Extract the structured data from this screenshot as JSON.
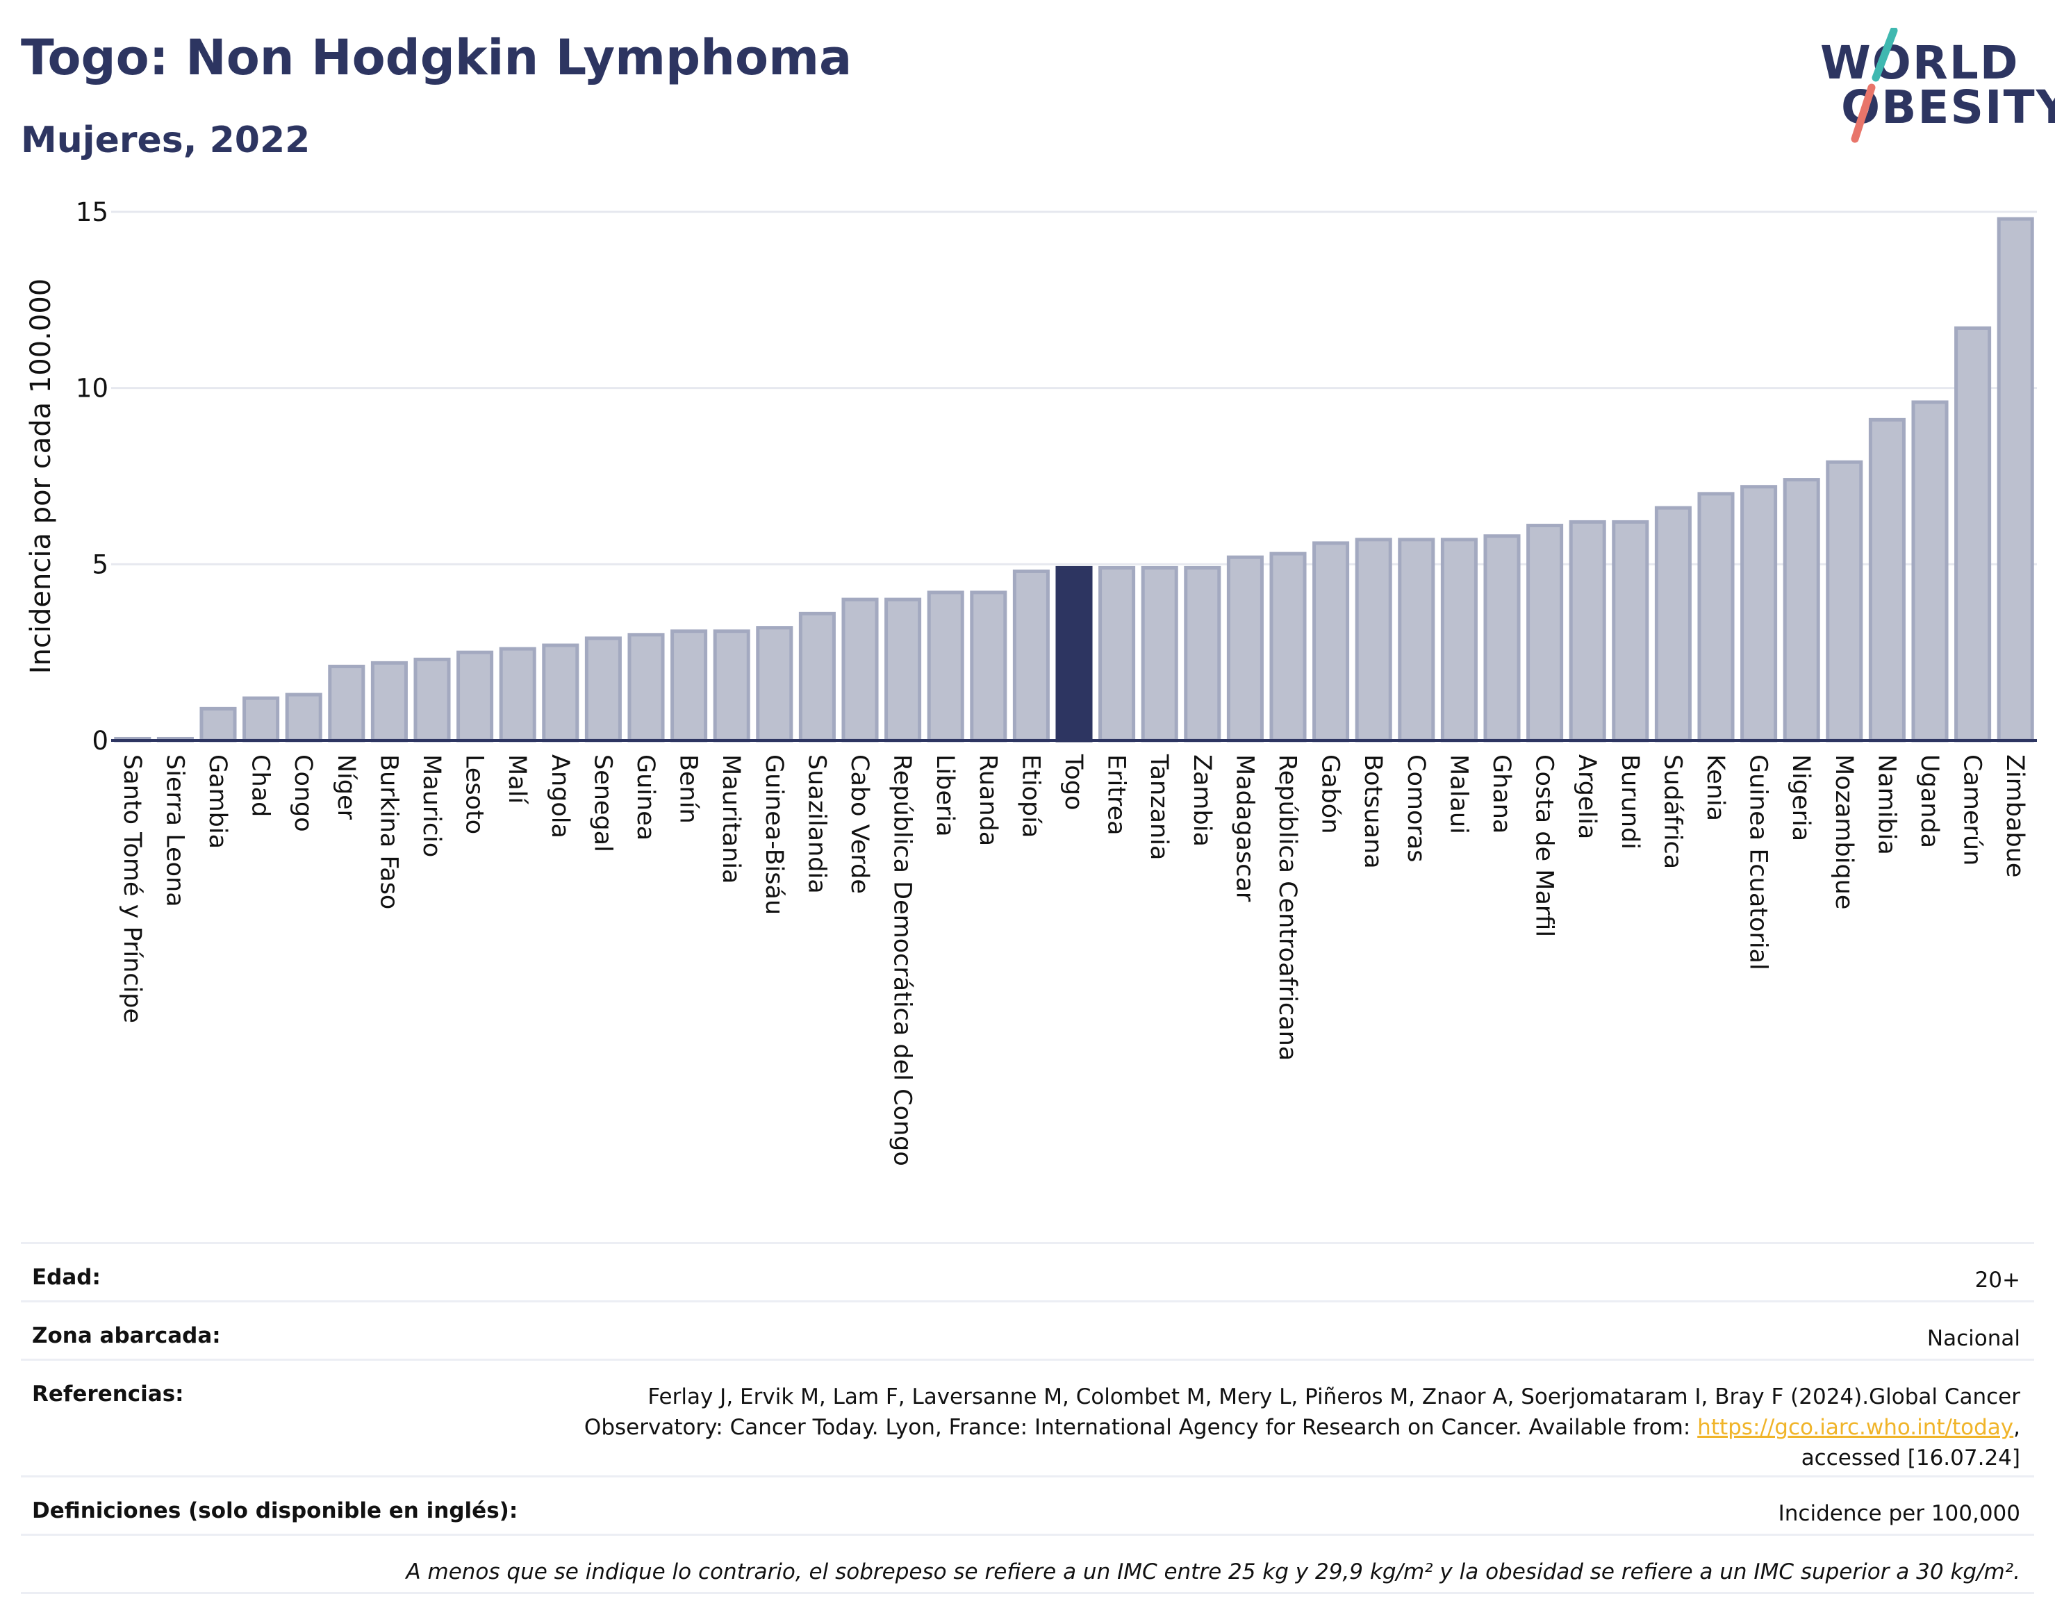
{
  "header": {
    "title": "Togo: Non Hodgkin Lymphoma",
    "subtitle": "Mujeres, 2022",
    "logo_line1": "WORLD",
    "logo_line2": "OBESITY"
  },
  "colors": {
    "highlight": "#2d3561",
    "bar_fill": "#bcc0cf",
    "bar_stroke": "#a3a9c0",
    "logo_slash_teal": "#3fb8b0",
    "logo_slash_coral": "#e8756a",
    "link": "#f0b429"
  },
  "chart_data": {
    "type": "bar",
    "ylabel": "Incidencia por cada 100.000",
    "ylim": [
      0,
      15
    ],
    "yticks": [
      0,
      5,
      10,
      15
    ],
    "highlight": "Togo",
    "grid": true,
    "categories": [
      "Santo Tomé y Príncipe",
      "Sierra Leona",
      "Gambia",
      "Chad",
      "Congo",
      "Níger",
      "Burkina Faso",
      "Mauricio",
      "Lesoto",
      "Malí",
      "Angola",
      "Senegal",
      "Guinea",
      "Benín",
      "Mauritania",
      "Guinea-Bisáu",
      "Suazilandia",
      "Cabo Verde",
      "República Democrática del Congo",
      "Liberia",
      "Ruanda",
      "Etiopía",
      "Togo",
      "Eritrea",
      "Tanzania",
      "Zambia",
      "Madagascar",
      "República Centroafricana",
      "Gabón",
      "Botsuana",
      "Comoras",
      "Malaui",
      "Ghana",
      "Costa de Marfil",
      "Argelia",
      "Burundi",
      "Sudáfrica",
      "Kenia",
      "Guinea Ecuatorial",
      "Nigeria",
      "Mozambique",
      "Namibia",
      "Uganda",
      "Camerún",
      "Zimbabue"
    ],
    "values": [
      0.05,
      0.05,
      0.9,
      1.2,
      1.3,
      2.1,
      2.2,
      2.3,
      2.5,
      2.6,
      2.7,
      2.9,
      3.0,
      3.1,
      3.1,
      3.2,
      3.6,
      4.0,
      4.0,
      4.2,
      4.2,
      4.8,
      4.9,
      4.9,
      4.9,
      4.9,
      5.2,
      5.3,
      5.6,
      5.7,
      5.7,
      5.7,
      5.8,
      6.1,
      6.2,
      6.2,
      6.6,
      7.0,
      7.2,
      7.4,
      7.9,
      9.1,
      9.6,
      11.7,
      14.8
    ]
  },
  "meta": {
    "age_label": "Edad:",
    "age_value": "20+",
    "area_label": "Zona abarcada:",
    "area_value": "Nacional",
    "refs_label": "Referencias:",
    "refs_line1": "Ferlay J, Ervik M, Lam F, Laversanne M, Colombet M, Mery L, Piñeros M, Znaor A, Soerjomataram I, Bray F (2024).Global Cancer",
    "refs_line2": "Observatory: Cancer Today. Lyon, France: International Agency for Research on Cancer. Available from: ",
    "refs_link": "https://gco.iarc.who.int/today",
    "refs_line2_end": ",",
    "refs_line3": "accessed [16.07.24]",
    "defs_label": "Definiciones (solo disponible en inglés):",
    "defs_value": "Incidence per 100,000",
    "note": "A menos que se indique lo contrario, el sobrepeso se refiere a un IMC entre 25 kg y 29,9 kg/m² y la obesidad se refiere a un IMC superior a 30 kg/m²."
  }
}
